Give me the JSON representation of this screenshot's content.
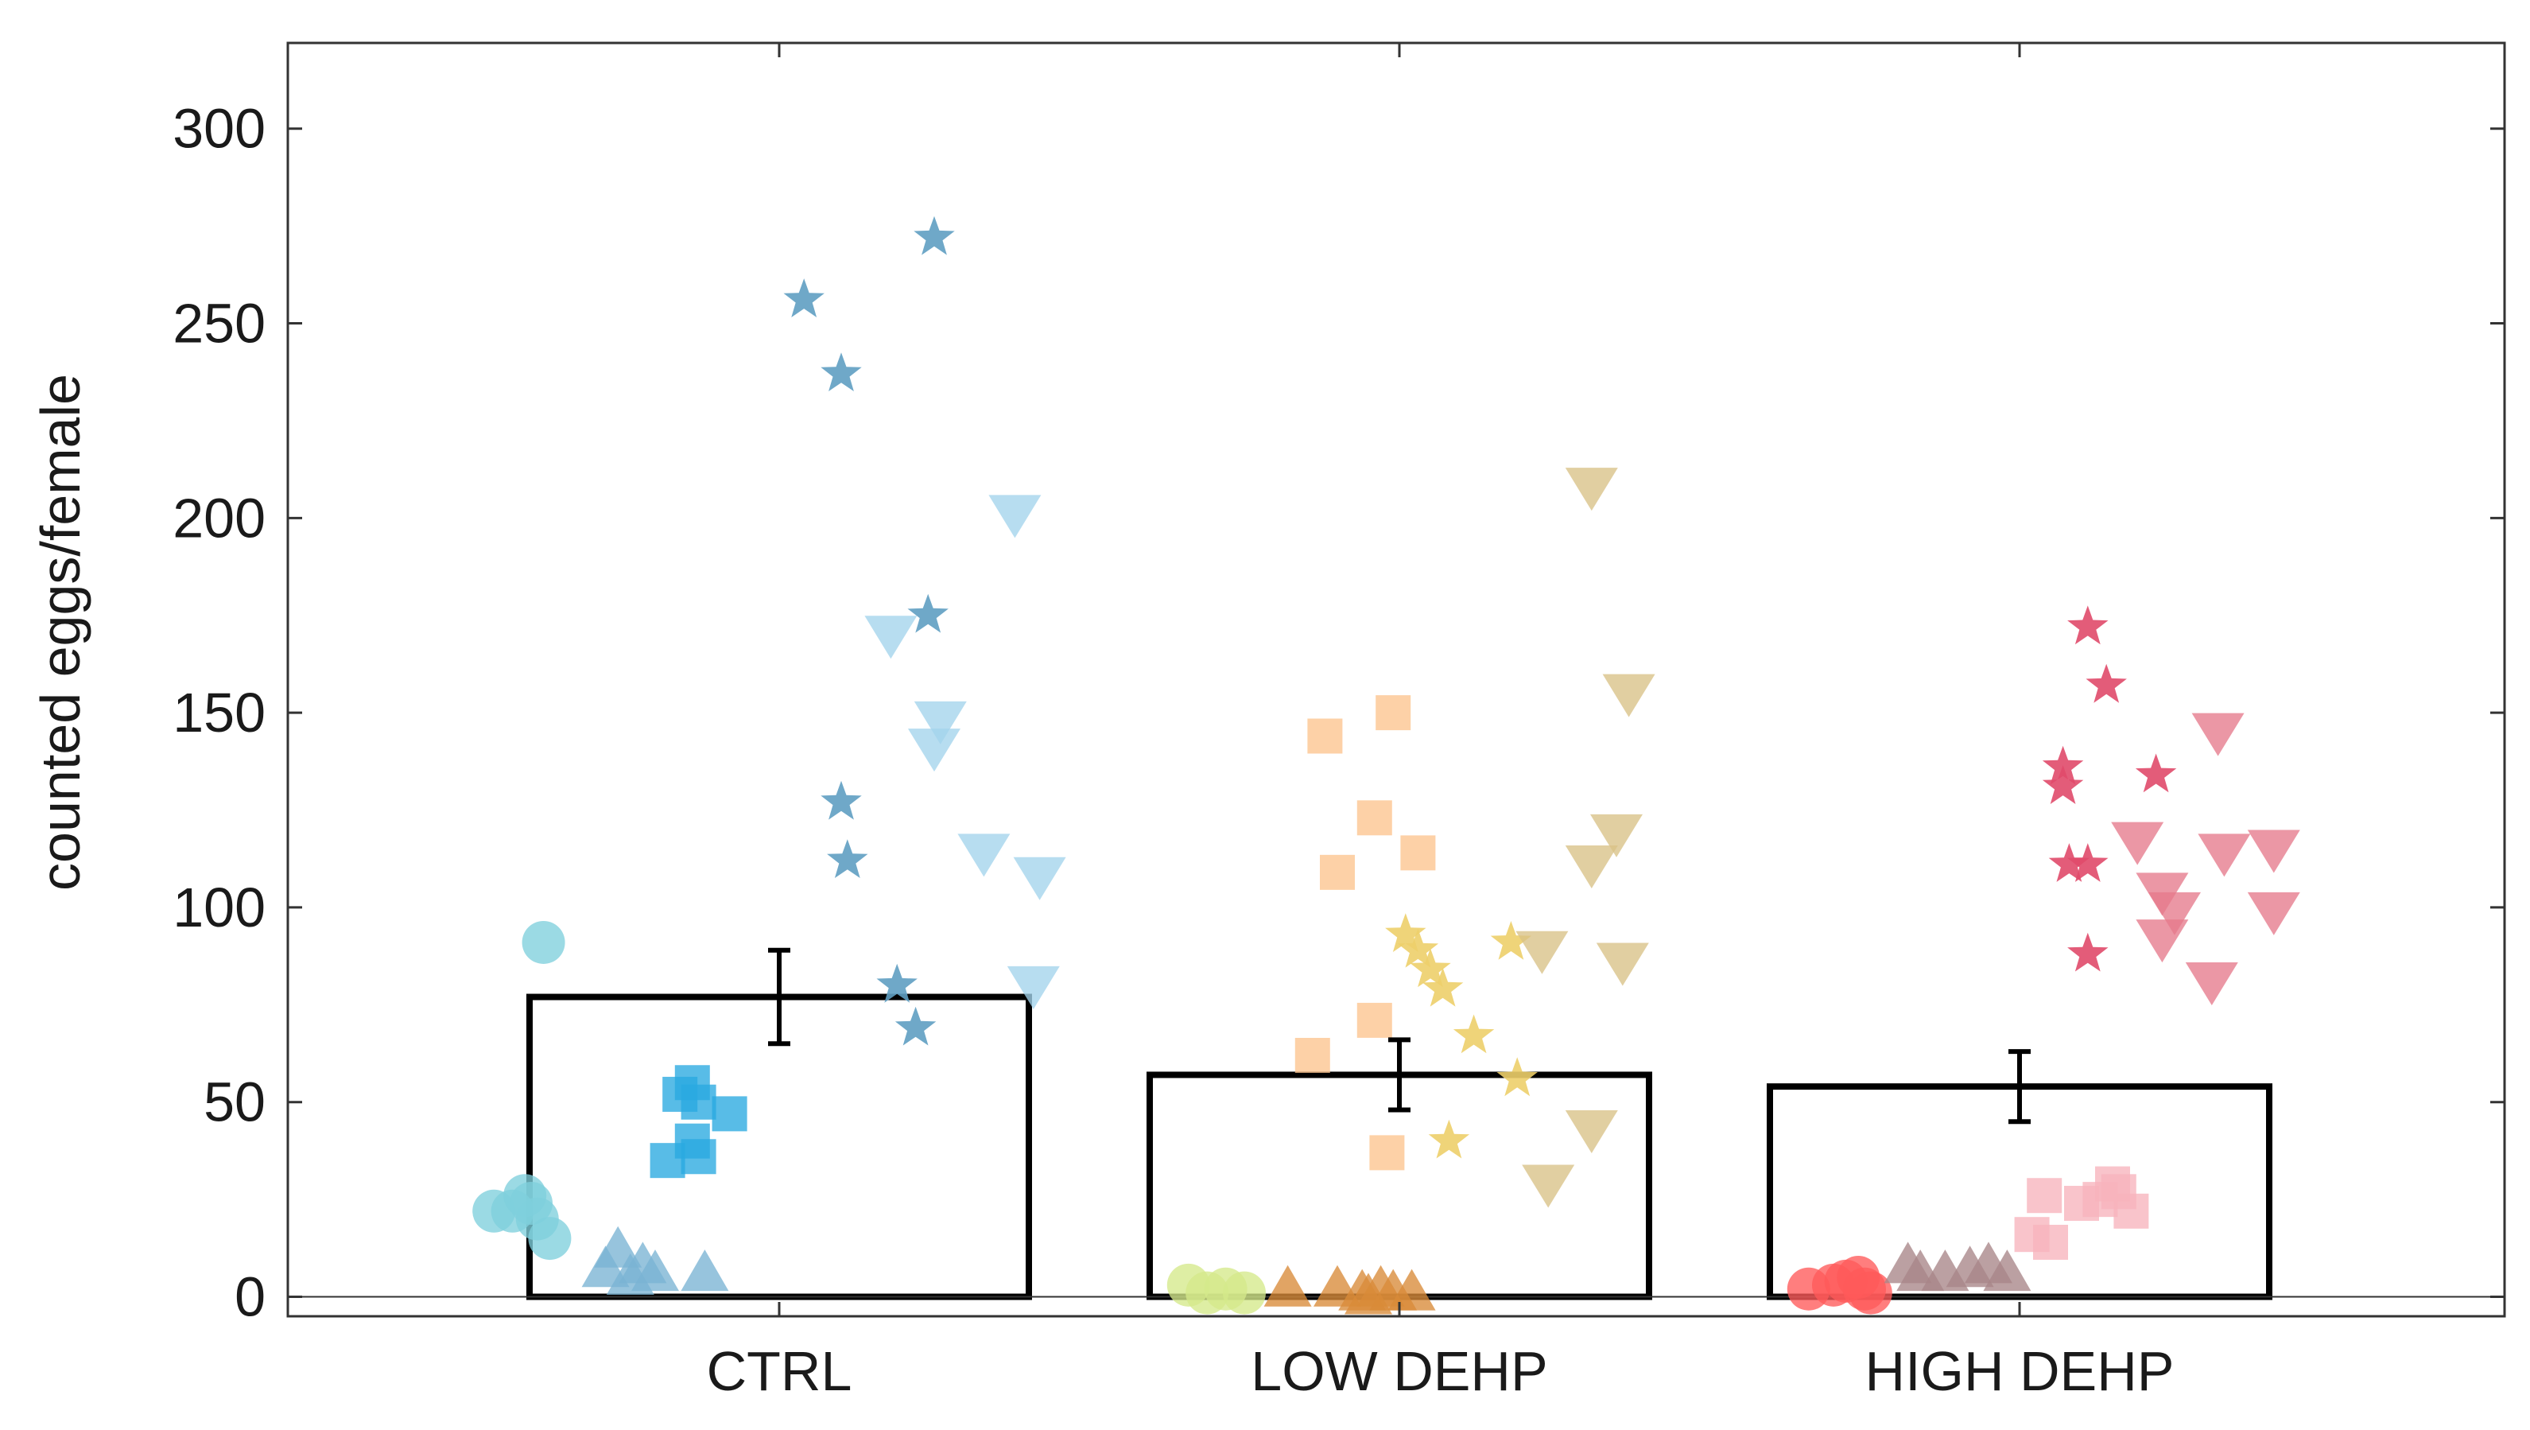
{
  "chart_data": {
    "type": "bar",
    "title": "",
    "xlabel": "",
    "ylabel": "counted eggs/female",
    "ylim": [
      -5,
      322
    ],
    "yticks": [
      0,
      50,
      100,
      150,
      200,
      250,
      300
    ],
    "categories": [
      "CTRL",
      "LOW DEHP",
      "HIGH DEHP"
    ],
    "bars": [
      {
        "category": "CTRL",
        "mean": 77,
        "error": 12
      },
      {
        "category": "LOW DEHP",
        "mean": 57,
        "error": 9
      },
      {
        "category": "HIGH DEHP",
        "mean": 54,
        "error": 9
      }
    ],
    "points": [
      {
        "group": "CTRL",
        "marker": "circle",
        "color": "#7fd0dc",
        "values": [
          {
            "x": -0.46,
            "y": 22
          },
          {
            "x": -0.43,
            "y": 22
          },
          {
            "x": -0.41,
            "y": 26
          },
          {
            "x": -0.39,
            "y": 20
          },
          {
            "x": -0.37,
            "y": 15
          },
          {
            "x": -0.38,
            "y": 91
          },
          {
            "x": -0.4,
            "y": 24
          }
        ]
      },
      {
        "group": "CTRL",
        "marker": "triangle-up",
        "color": "#7ab3d4",
        "values": [
          {
            "x": -0.28,
            "y": 7
          },
          {
            "x": -0.26,
            "y": 12
          },
          {
            "x": -0.24,
            "y": 5
          },
          {
            "x": -0.22,
            "y": 8
          },
          {
            "x": -0.2,
            "y": 6
          },
          {
            "x": -0.12,
            "y": 6
          }
        ]
      },
      {
        "group": "CTRL",
        "marker": "square",
        "color": "#29a9e0",
        "values": [
          {
            "x": -0.18,
            "y": 35
          },
          {
            "x": -0.16,
            "y": 52
          },
          {
            "x": -0.14,
            "y": 55
          },
          {
            "x": -0.13,
            "y": 50
          },
          {
            "x": -0.14,
            "y": 40
          },
          {
            "x": -0.13,
            "y": 36
          },
          {
            "x": -0.08,
            "y": 47
          }
        ]
      },
      {
        "group": "CTRL",
        "marker": "star",
        "color": "#5f9fc2",
        "values": [
          {
            "x": 0.04,
            "y": 256
          },
          {
            "x": 0.1,
            "y": 237
          },
          {
            "x": 0.25,
            "y": 272
          },
          {
            "x": 0.24,
            "y": 175
          },
          {
            "x": 0.1,
            "y": 127
          },
          {
            "x": 0.11,
            "y": 112
          },
          {
            "x": 0.19,
            "y": 80
          },
          {
            "x": 0.22,
            "y": 69
          }
        ]
      },
      {
        "group": "CTRL",
        "marker": "triangle-down",
        "color": "#a3d3ec",
        "values": [
          {
            "x": 0.38,
            "y": 201
          },
          {
            "x": 0.18,
            "y": 170
          },
          {
            "x": 0.26,
            "y": 148
          },
          {
            "x": 0.25,
            "y": 141
          },
          {
            "x": 0.33,
            "y": 114
          },
          {
            "x": 0.42,
            "y": 108
          },
          {
            "x": 0.41,
            "y": 80
          }
        ]
      },
      {
        "group": "LOW DEHP",
        "marker": "circle",
        "color": "#d5e98a",
        "values": [
          {
            "x": -0.34,
            "y": 3
          },
          {
            "x": -0.31,
            "y": 1
          },
          {
            "x": -0.28,
            "y": 2
          },
          {
            "x": -0.25,
            "y": 1
          }
        ]
      },
      {
        "group": "LOW DEHP",
        "marker": "triangle-up",
        "color": "#d98a38",
        "values": [
          {
            "x": -0.18,
            "y": 2
          },
          {
            "x": -0.1,
            "y": 2
          },
          {
            "x": -0.06,
            "y": 1
          },
          {
            "x": -0.03,
            "y": 2
          },
          {
            "x": -0.01,
            "y": 1
          },
          {
            "x": 0.02,
            "y": 1
          },
          {
            "x": -0.05,
            "y": 0
          }
        ]
      },
      {
        "group": "LOW DEHP",
        "marker": "square",
        "color": "#fcc48e",
        "values": [
          {
            "x": -0.12,
            "y": 144
          },
          {
            "x": -0.01,
            "y": 150
          },
          {
            "x": -0.04,
            "y": 123
          },
          {
            "x": 0.03,
            "y": 114
          },
          {
            "x": -0.1,
            "y": 109
          },
          {
            "x": -0.04,
            "y": 71
          },
          {
            "x": -0.14,
            "y": 62
          },
          {
            "x": -0.02,
            "y": 37
          }
        ]
      },
      {
        "group": "LOW DEHP",
        "marker": "star",
        "color": "#edcf6a",
        "values": [
          {
            "x": 0.01,
            "y": 93
          },
          {
            "x": 0.03,
            "y": 89
          },
          {
            "x": 0.05,
            "y": 84
          },
          {
            "x": 0.07,
            "y": 79
          },
          {
            "x": 0.12,
            "y": 67
          },
          {
            "x": 0.18,
            "y": 91
          },
          {
            "x": 0.19,
            "y": 56
          },
          {
            "x": 0.08,
            "y": 40
          }
        ]
      },
      {
        "group": "LOW DEHP",
        "marker": "triangle-down",
        "color": "#d8c286",
        "values": [
          {
            "x": 0.31,
            "y": 208
          },
          {
            "x": 0.37,
            "y": 155
          },
          {
            "x": 0.35,
            "y": 119
          },
          {
            "x": 0.31,
            "y": 111
          },
          {
            "x": 0.23,
            "y": 89
          },
          {
            "x": 0.36,
            "y": 86
          },
          {
            "x": 0.31,
            "y": 43
          },
          {
            "x": 0.24,
            "y": 29
          }
        ]
      },
      {
        "group": "HIGH DEHP",
        "marker": "circle",
        "color": "#ff5a5a",
        "values": [
          {
            "x": -0.34,
            "y": 2
          },
          {
            "x": -0.3,
            "y": 3
          },
          {
            "x": -0.28,
            "y": 4
          },
          {
            "x": -0.26,
            "y": 5
          },
          {
            "x": -0.25,
            "y": 2
          },
          {
            "x": -0.24,
            "y": 1
          }
        ]
      },
      {
        "group": "HIGH DEHP",
        "marker": "triangle-up",
        "color": "#a88588",
        "values": [
          {
            "x": -0.18,
            "y": 8
          },
          {
            "x": -0.16,
            "y": 6
          },
          {
            "x": -0.12,
            "y": 6
          },
          {
            "x": -0.08,
            "y": 7
          },
          {
            "x": -0.05,
            "y": 8
          },
          {
            "x": -0.02,
            "y": 6
          }
        ]
      },
      {
        "group": "HIGH DEHP",
        "marker": "square",
        "color": "#f7b3bc",
        "values": [
          {
            "x": 0.02,
            "y": 16
          },
          {
            "x": 0.05,
            "y": 14
          },
          {
            "x": 0.04,
            "y": 26
          },
          {
            "x": 0.1,
            "y": 24
          },
          {
            "x": 0.15,
            "y": 29
          },
          {
            "x": 0.18,
            "y": 22
          },
          {
            "x": 0.16,
            "y": 27
          },
          {
            "x": 0.13,
            "y": 25
          }
        ]
      },
      {
        "group": "HIGH DEHP",
        "marker": "star",
        "color": "#e04a6a",
        "values": [
          {
            "x": 0.11,
            "y": 172
          },
          {
            "x": 0.14,
            "y": 157
          },
          {
            "x": 0.07,
            "y": 136
          },
          {
            "x": 0.07,
            "y": 131
          },
          {
            "x": 0.22,
            "y": 134
          },
          {
            "x": 0.08,
            "y": 111
          },
          {
            "x": 0.11,
            "y": 111
          },
          {
            "x": 0.11,
            "y": 88
          }
        ]
      },
      {
        "group": "HIGH DEHP",
        "marker": "triangle-down",
        "color": "#e67a8c",
        "values": [
          {
            "x": 0.32,
            "y": 145
          },
          {
            "x": 0.19,
            "y": 117
          },
          {
            "x": 0.23,
            "y": 104
          },
          {
            "x": 0.25,
            "y": 99
          },
          {
            "x": 0.23,
            "y": 92
          },
          {
            "x": 0.31,
            "y": 81
          },
          {
            "x": 0.33,
            "y": 114
          },
          {
            "x": 0.41,
            "y": 115
          },
          {
            "x": 0.41,
            "y": 99
          }
        ]
      }
    ]
  }
}
